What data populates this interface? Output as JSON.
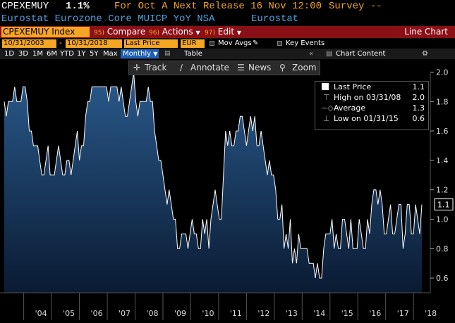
{
  "header": {
    "ticker": "CPEXEMUY",
    "value": "1.1%",
    "for_period": "For Oct A",
    "next_release": "Next Release 16 Nov 12:00",
    "survey": "Survey --",
    "description": "Eurostat Eurozone Core MUICP YoY NSA",
    "source": "Eurostat"
  },
  "toolbar": {
    "ticker_field": "CPEXEMUY Index",
    "compare_num": "95)",
    "compare": "Compare",
    "actions_num": "96)",
    "actions": "Actions",
    "edit_num": "97)",
    "edit": "Edit",
    "chart_type": "Line Chart"
  },
  "dates": {
    "start": "10/31/2003",
    "sep": "-",
    "end": "10/31/2018",
    "field": "Last Price",
    "currency": "EUR",
    "mov_avgs": "Mov Avgs",
    "key_events": "Key Events"
  },
  "periods": {
    "items": [
      "1D",
      "3D",
      "1M",
      "6M",
      "YTD",
      "1Y",
      "5Y",
      "Max"
    ],
    "frequency": "Monthly",
    "table": "Table",
    "chart_content": "Chart Content"
  },
  "chart_tools": {
    "track": "Track",
    "annotate": "Annotate",
    "news": "News",
    "zoom": "Zoom"
  },
  "legend": {
    "last_label": "Last Price",
    "last_value": "1.1",
    "high_label": "High on 03/31/08",
    "high_value": "2.0",
    "avg_label": "Average",
    "avg_value": "1.3",
    "low_label": "Low on 01/31/15",
    "low_value": "0.6"
  },
  "chart_data": {
    "type": "area",
    "x_labels": [
      "'04",
      "'05",
      "'06",
      "'07",
      "'08",
      "'09",
      "'10",
      "'11",
      "'12",
      "'13",
      "'14",
      "'15",
      "'16",
      "'17",
      "'18"
    ],
    "ylim": [
      0.5,
      2.0
    ],
    "y_ticks": [
      "2.0",
      "1.8",
      "1.6",
      "1.4",
      "1.2",
      "1.0",
      "0.8",
      "0.6"
    ],
    "last_value_label": "1.1",
    "colors": {
      "line": "#ffffff",
      "fill_top": "#2a5a8c",
      "fill_bottom": "#0a1b33",
      "value_box": "#ffffff"
    },
    "values": [
      1.8,
      1.7,
      1.8,
      1.8,
      1.8,
      1.9,
      1.8,
      1.8,
      1.8,
      1.9,
      1.9,
      1.8,
      1.6,
      1.6,
      1.5,
      1.5,
      1.5,
      1.4,
      1.3,
      1.3,
      1.4,
      1.5,
      1.3,
      1.3,
      1.3,
      1.4,
      1.5,
      1.4,
      1.3,
      1.3,
      1.4,
      1.4,
      1.3,
      1.4,
      1.5,
      1.6,
      1.4,
      1.5,
      1.5,
      1.7,
      1.8,
      1.8,
      1.9,
      1.9,
      1.9,
      1.9,
      1.9,
      1.9,
      1.9,
      1.9,
      1.8,
      1.9,
      1.9,
      1.9,
      1.9,
      1.8,
      1.9,
      1.8,
      1.7,
      1.7,
      1.8,
      1.9,
      2.0,
      1.8,
      1.7,
      1.8,
      1.8,
      1.8,
      1.8,
      1.9,
      1.8,
      1.8,
      1.6,
      1.5,
      1.4,
      1.4,
      1.3,
      1.2,
      1.1,
      1.2,
      1.1,
      1.0,
      1.0,
      0.8,
      0.8,
      0.9,
      0.9,
      0.9,
      0.8,
      0.9,
      1.0,
      0.9,
      0.9,
      0.8,
      0.8,
      1.0,
      0.9,
      1.0,
      0.8,
      1.0,
      1.1,
      1.2,
      1.1,
      1.0,
      1.0,
      1.3,
      1.6,
      1.5,
      1.6,
      1.5,
      1.5,
      1.6,
      1.6,
      1.7,
      1.7,
      1.6,
      1.5,
      1.6,
      1.7,
      1.6,
      1.7,
      1.5,
      1.5,
      1.6,
      1.5,
      1.4,
      1.3,
      1.4,
      1.3,
      1.3,
      1.2,
      1.0,
      1.0,
      1.1,
      0.8,
      0.9,
      0.8,
      1.0,
      0.7,
      0.8,
      0.7,
      0.9,
      0.8,
      0.8,
      0.8,
      0.8,
      0.7,
      0.7,
      0.7,
      0.6,
      0.7,
      0.6,
      0.6,
      0.8,
      0.9,
      0.9,
      0.9,
      1.0,
      0.8,
      0.9,
      0.8,
      0.8,
      1.0,
      1.0,
      0.9,
      0.8,
      1.0,
      0.8,
      0.8,
      0.8,
      1.0,
      0.9,
      0.8,
      0.8,
      1.0,
      0.9,
      1.1,
      1.2,
      1.2,
      1.1,
      1.2,
      1.1,
      0.9,
      0.9,
      1.0,
      1.1,
      0.9,
      0.9,
      1.0,
      1.1,
      1.1,
      0.8,
      0.9,
      1.1,
      1.1,
      0.9,
      0.9,
      1.1,
      1.0,
      0.9,
      1.1
    ]
  }
}
